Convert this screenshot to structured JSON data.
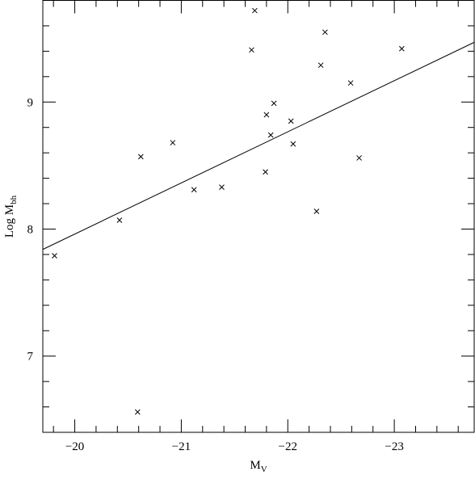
{
  "chart_data": {
    "type": "scatter",
    "xlabel": "M",
    "xlabel_sub": "V",
    "ylabel": "Log  M",
    "ylabel_sub": "bh",
    "xlim": [
      -19.7,
      -23.75
    ],
    "ylim": [
      6.4,
      9.8
    ],
    "xticks": [
      {
        "value": -20,
        "label": "−20"
      },
      {
        "value": -21,
        "label": "−21"
      },
      {
        "value": -22,
        "label": "−22"
      },
      {
        "value": -23,
        "label": "−23"
      }
    ],
    "yticks": [
      7,
      8,
      9
    ],
    "xminorticks": [
      -19.8,
      -20.2,
      -20.4,
      -20.6,
      -20.8,
      -21.2,
      -21.4,
      -21.6,
      -21.8,
      -22.2,
      -22.4,
      -22.6,
      -22.8,
      -23.2,
      -23.4,
      -23.6
    ],
    "yminorticks": [
      6.4,
      6.6,
      6.8,
      7.2,
      7.4,
      7.6,
      7.8,
      8.2,
      8.4,
      8.6,
      8.8,
      9.2,
      9.4,
      9.6
    ],
    "series": [
      {
        "type": "scatter",
        "color": "#000000",
        "x": [
          -20.62,
          -20.92,
          -21.12,
          -21.38,
          -20.42,
          -19.81,
          -20.59,
          -21.66,
          -21.69,
          -22.35,
          -22.31,
          -22.59,
          -23.07,
          -21.87,
          -21.8,
          -21.84,
          -22.03,
          -22.05,
          -21.79,
          -22.67,
          -22.27
        ],
        "values": [
          8.57,
          8.68,
          8.31,
          8.33,
          8.07,
          7.79,
          6.56,
          9.41,
          9.72,
          9.55,
          9.29,
          9.15,
          9.42,
          8.99,
          8.9,
          8.74,
          8.85,
          8.67,
          8.45,
          8.56,
          8.14
        ]
      },
      {
        "type": "line",
        "color": "#000000",
        "x": [
          -19.7,
          -23.75
        ],
        "values": [
          7.84,
          9.47
        ]
      }
    ]
  }
}
